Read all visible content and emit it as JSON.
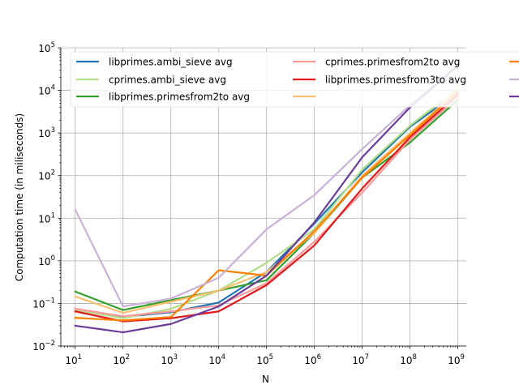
{
  "chart_data": {
    "type": "line",
    "title": "",
    "xlabel": "N",
    "ylabel": "Computation time (in miliseconds)",
    "x": [
      10,
      100,
      1000,
      10000,
      100000,
      1000000,
      10000000,
      100000000,
      1000000000
    ],
    "xscale": "log",
    "yscale": "log",
    "xlim": [
      5,
      1500000000
    ],
    "ylim": [
      0.01,
      100000
    ],
    "grid": true,
    "legend_position": "top",
    "x_ticks": [
      {
        "base": "10",
        "exp": "1",
        "value": 10
      },
      {
        "base": "10",
        "exp": "2",
        "value": 100
      },
      {
        "base": "10",
        "exp": "3",
        "value": 1000
      },
      {
        "base": "10",
        "exp": "4",
        "value": 10000
      },
      {
        "base": "10",
        "exp": "5",
        "value": 100000
      },
      {
        "base": "10",
        "exp": "6",
        "value": 1000000
      },
      {
        "base": "10",
        "exp": "7",
        "value": 10000000
      },
      {
        "base": "10",
        "exp": "8",
        "value": 100000000
      },
      {
        "base": "10",
        "exp": "9",
        "value": 1000000000
      }
    ],
    "y_ticks": [
      {
        "base": "10",
        "exp": "−2",
        "value": 0.01
      },
      {
        "base": "10",
        "exp": "−1",
        "value": 0.1
      },
      {
        "base": "10",
        "exp": "0",
        "value": 1
      },
      {
        "base": "10",
        "exp": "1",
        "value": 10
      },
      {
        "base": "10",
        "exp": "2",
        "value": 100
      },
      {
        "base": "10",
        "exp": "3",
        "value": 1000
      },
      {
        "base": "10",
        "exp": "4",
        "value": 10000
      },
      {
        "base": "10",
        "exp": "5",
        "value": 100000
      }
    ],
    "series": [
      {
        "name": "libprimes.ambi_sieve avg",
        "color": "#1f78b4",
        "values": [
          0.075,
          0.048,
          0.062,
          0.105,
          0.55,
          7.5,
          120,
          1400,
          9000
        ]
      },
      {
        "name": "cprimes.ambi_sieve avg",
        "color": "#b2df8a",
        "values": [
          0.07,
          0.045,
          0.075,
          0.2,
          0.9,
          5.5,
          140,
          1500,
          11000
        ]
      },
      {
        "name": "libprimes.primesfrom2to avg",
        "color": "#33a02c",
        "values": [
          0.19,
          0.07,
          0.12,
          0.2,
          0.35,
          4.5,
          90,
          600,
          6000
        ]
      },
      {
        "name": "cprimes.primesfrom2to avg",
        "color": "#fb9a99",
        "values": [
          0.075,
          0.05,
          0.065,
          0.09,
          0.3,
          2.8,
          40,
          700,
          7000
        ]
      },
      {
        "name": "libprimes.primesfrom3to avg",
        "color": "#e31a1c",
        "values": [
          0.065,
          0.038,
          0.045,
          0.065,
          0.27,
          2.3,
          50,
          800,
          8000
        ]
      },
      {
        "name": "",
        "color": "#fdbf6f",
        "values": [
          0.145,
          0.06,
          0.11,
          0.2,
          0.55,
          4.5,
          100,
          1000,
          10000
        ]
      },
      {
        "name": "",
        "color": "#ff7f00",
        "values": [
          0.046,
          0.04,
          0.048,
          0.6,
          0.45,
          5,
          90,
          900,
          9500
        ]
      },
      {
        "name": "",
        "color": "#cab2d6",
        "values": [
          16,
          0.085,
          0.13,
          0.4,
          5.5,
          35,
          420,
          4500,
          40000
        ]
      },
      {
        "name": "",
        "color": "#6a3d9a",
        "values": [
          0.03,
          0.021,
          0.033,
          0.085,
          0.45,
          8,
          270,
          4000,
          38000
        ]
      }
    ]
  }
}
